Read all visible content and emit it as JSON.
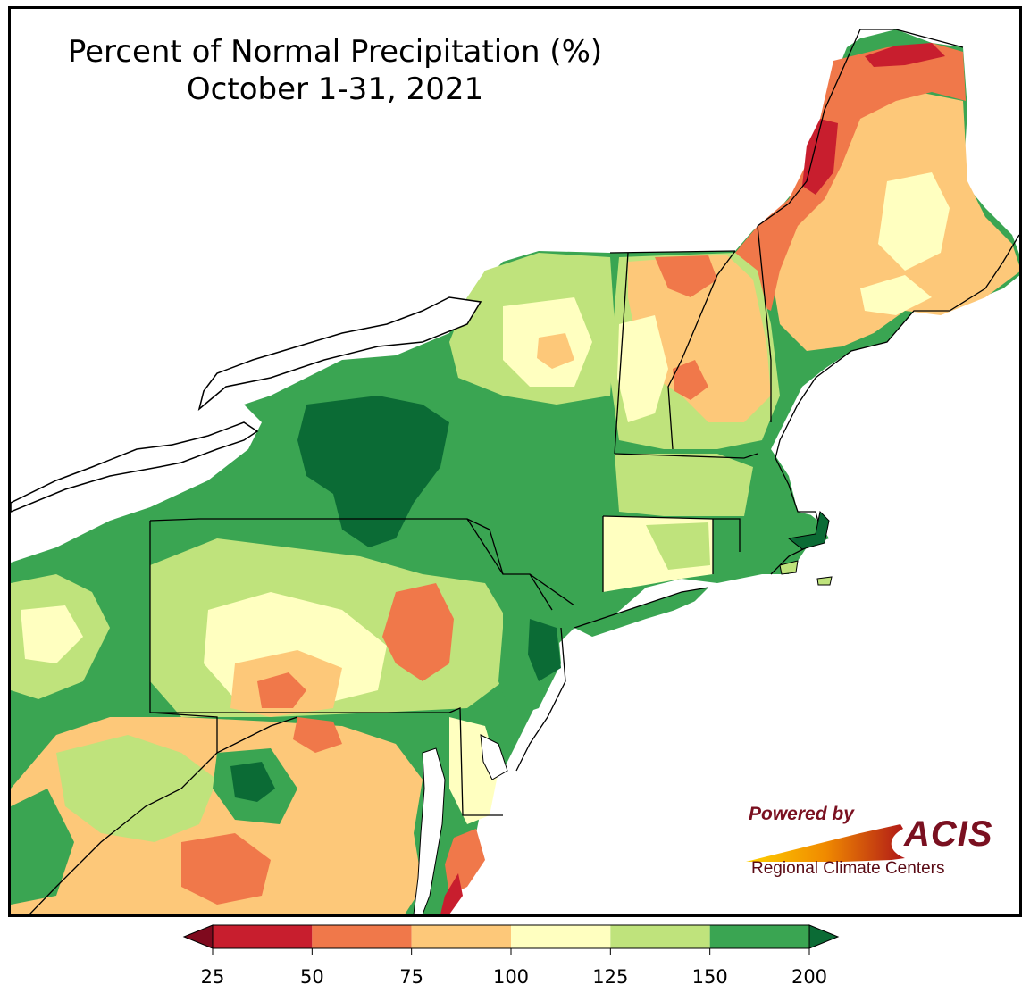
{
  "title": {
    "line1": "Percent of Normal Precipitation (%)",
    "line2": "October 1-31, 2021"
  },
  "branding": {
    "powered_by": "Powered by",
    "acis": "ACIS",
    "rcc": "Regional Climate Centers"
  },
  "legend": {
    "ticks": [
      "25",
      "50",
      "75",
      "100",
      "125",
      "150",
      "200"
    ],
    "bins": [
      {
        "range": "<25",
        "color": "#7f0a1e"
      },
      {
        "range": "25-50",
        "color": "#c81e2e"
      },
      {
        "range": "50-75",
        "color": "#f0784a"
      },
      {
        "range": "75-100",
        "color": "#fdc879"
      },
      {
        "range": "100-125",
        "color": "#ffffc0"
      },
      {
        "range": "125-150",
        "color": "#bfe37c"
      },
      {
        "range": "150-200",
        "color": "#3aa552"
      },
      {
        "range": ">200",
        "color": "#0b6b35"
      }
    ]
  },
  "colors": {
    "very_dry": "#c81e2e",
    "dry": "#f0784a",
    "below": "#fdc879",
    "near": "#ffffc0",
    "above": "#bfe37c",
    "wet": "#3aa552",
    "very_wet": "#0b6b35"
  }
}
